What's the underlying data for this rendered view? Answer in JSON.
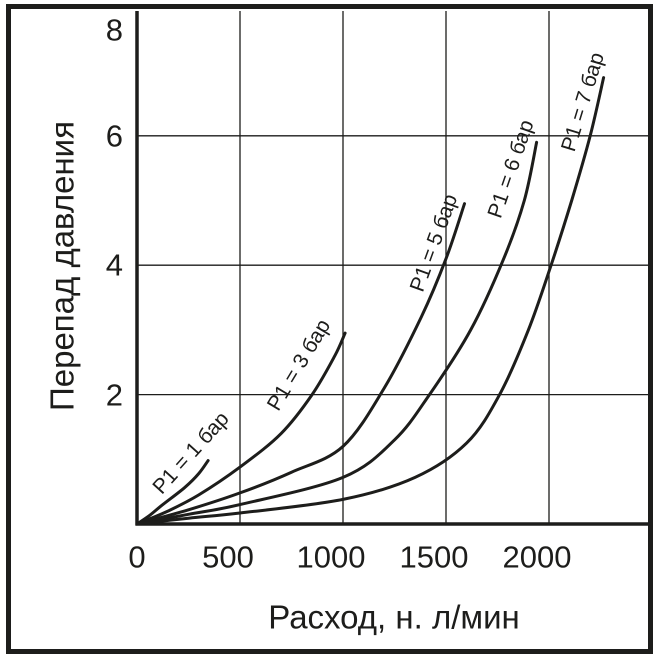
{
  "colors": {
    "ink": "#1d1d1b",
    "background": "#ffffff"
  },
  "chart_data": {
    "type": "line",
    "title": "",
    "xlabel": "Расход, н. л/мин",
    "ylabel": "Перепад давления",
    "xlim": [
      0,
      2500
    ],
    "ylim": [
      0,
      8
    ],
    "x_ticks": [
      0,
      500,
      1000,
      1500,
      2000
    ],
    "y_ticks": [
      2,
      4,
      6,
      8
    ],
    "grid": true,
    "legend_position": "labels-along-curves",
    "series": [
      {
        "name": "P1 = 1 бар",
        "points": [
          [
            0,
            0
          ],
          [
            60,
            0.13
          ],
          [
            125,
            0.3
          ],
          [
            230,
            0.56
          ],
          [
            300,
            0.78
          ],
          [
            345,
            0.98
          ]
        ],
        "label_at": [
          262,
          1.1
        ],
        "label_angle": -48
      },
      {
        "name": "P1 = 3 бар",
        "points": [
          [
            0,
            0
          ],
          [
            150,
            0.2
          ],
          [
            300,
            0.45
          ],
          [
            500,
            0.88
          ],
          [
            700,
            1.4
          ],
          [
            850,
            2.0
          ],
          [
            960,
            2.6
          ],
          [
            1010,
            2.95
          ]
        ],
        "label_at": [
          786,
          2.46
        ],
        "label_angle": -59
      },
      {
        "name": "P1 = 5 бар",
        "points": [
          [
            0,
            0
          ],
          [
            250,
            0.22
          ],
          [
            500,
            0.48
          ],
          [
            750,
            0.8
          ],
          [
            1000,
            1.2
          ],
          [
            1200,
            2.1
          ],
          [
            1380,
            3.2
          ],
          [
            1500,
            4.1
          ],
          [
            1590,
            4.95
          ]
        ],
        "label_at": [
          1442,
          4.34
        ],
        "label_angle": -70
      },
      {
        "name": "P1 = 6 бар",
        "points": [
          [
            0,
            0
          ],
          [
            250,
            0.15
          ],
          [
            500,
            0.3
          ],
          [
            1000,
            0.72
          ],
          [
            1250,
            1.3
          ],
          [
            1420,
            2.0
          ],
          [
            1620,
            3.0
          ],
          [
            1780,
            4.1
          ],
          [
            1880,
            5.0
          ],
          [
            1940,
            5.9
          ]
        ],
        "label_at": [
          1816,
          5.49
        ],
        "label_angle": -71
      },
      {
        "name": "P1 = 7 бар",
        "points": [
          [
            0,
            0
          ],
          [
            250,
            0.09
          ],
          [
            500,
            0.17
          ],
          [
            1000,
            0.38
          ],
          [
            1350,
            0.72
          ],
          [
            1600,
            1.25
          ],
          [
            1760,
            2.0
          ],
          [
            1900,
            3.0
          ],
          [
            2010,
            4.0
          ],
          [
            2110,
            5.0
          ],
          [
            2200,
            6.0
          ],
          [
            2265,
            6.9
          ]
        ],
        "label_at": [
          2165,
          6.52
        ],
        "label_angle": -73
      }
    ]
  }
}
